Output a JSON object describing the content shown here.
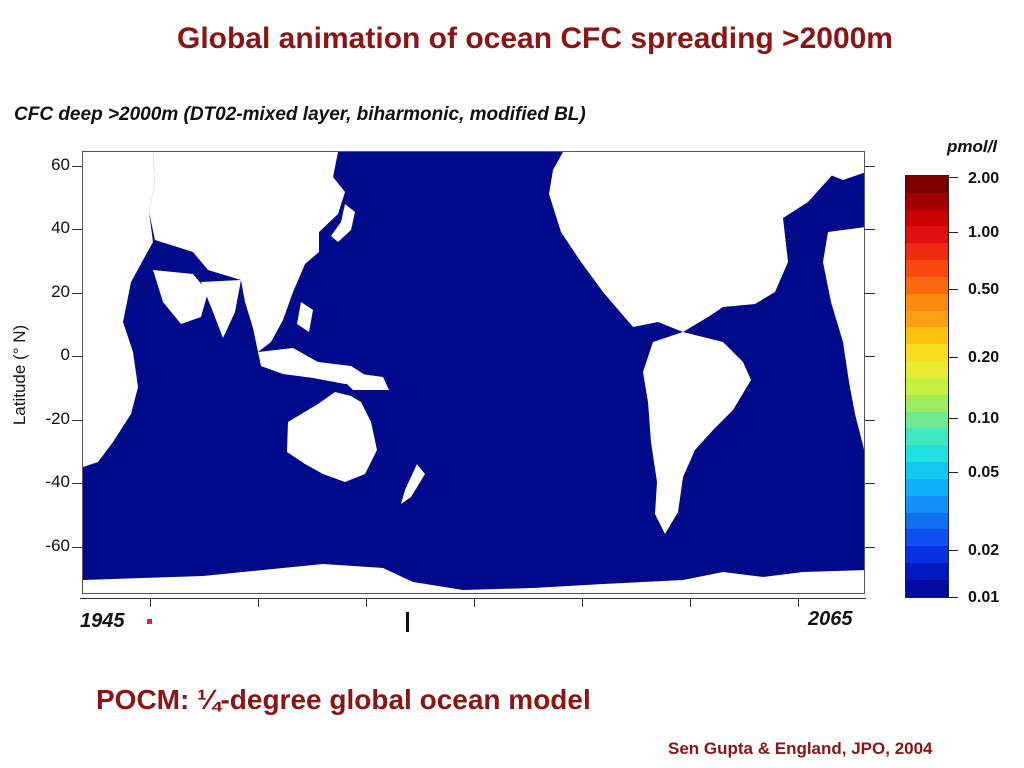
{
  "slide_title": "Global animation of ocean CFC spreading >2000m",
  "plot_title": "CFC deep >2000m (DT02-mixed layer, biharmonic, modified BL)",
  "y_axis": {
    "label": "Latitude (° N)",
    "ticks": [
      "60",
      "40",
      "20",
      "0",
      "-20",
      "-40",
      "-60"
    ]
  },
  "timeline": {
    "start_year": "1945",
    "end_year": "2065"
  },
  "colorbar": {
    "unit": "pmol/l",
    "labels": [
      "2.00",
      "1.00",
      "0.50",
      "0.20",
      "0.10",
      "0.05",
      "0.02",
      "0.01"
    ],
    "colors": [
      "#7a0000",
      "#a00000",
      "#c80000",
      "#e01010",
      "#f02a10",
      "#f84a10",
      "#fc6a10",
      "#fc8a10",
      "#fca010",
      "#fcc010",
      "#f8dc20",
      "#e8ec30",
      "#c8f040",
      "#a0ec60",
      "#70e890",
      "#40e8c0",
      "#20e0e0",
      "#10c8f0",
      "#10b0f8",
      "#1090f8",
      "#1070f0",
      "#1050f0",
      "#0830e0",
      "#0018c0",
      "#000aa0"
    ],
    "ocean_color": "#000a8a"
  },
  "subtitle": "POCM: ¼-degree global ocean model",
  "citation": "Sen Gupta & England, JPO, 2004"
}
